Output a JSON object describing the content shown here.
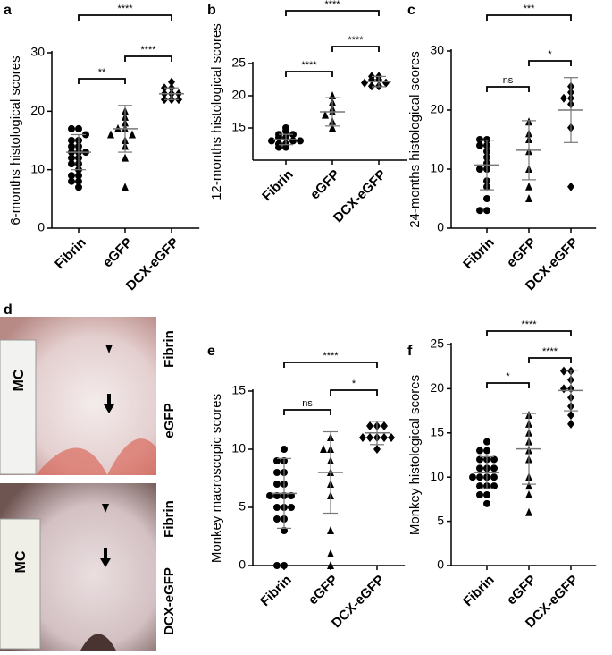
{
  "chart_data": [
    {
      "type": "dot",
      "panel": "a",
      "y_label": "6-months histological scores",
      "categories": [
        "Fibrin",
        "eGFP",
        "DCX-eGFP"
      ],
      "markers": [
        "circle",
        "triangle",
        "diamond"
      ],
      "color": "#000000",
      "ylim": [
        0,
        30
      ],
      "yticks": [
        0,
        10,
        20,
        30
      ],
      "groups": [
        {
          "values": [
            17,
            17,
            16,
            15,
            15,
            14,
            14,
            13,
            13,
            13,
            12,
            12,
            11,
            11,
            10,
            9,
            9,
            8,
            8,
            7
          ],
          "mean": 13,
          "sd": 3
        },
        {
          "values": [
            20,
            19,
            18,
            17,
            17,
            16,
            16,
            15,
            14,
            12,
            7
          ],
          "mean": 17,
          "sd": 4
        },
        {
          "values": [
            25,
            24,
            24,
            23,
            23,
            23,
            22,
            22,
            22
          ],
          "mean": 23,
          "sd": 1
        }
      ],
      "comparisons": [
        {
          "from": 0,
          "to": 1,
          "label": "**"
        },
        {
          "from": 1,
          "to": 2,
          "label": "****"
        },
        {
          "from": 0,
          "to": 2,
          "label": "****"
        }
      ]
    },
    {
      "type": "dot",
      "panel": "b",
      "y_label": "12-months histological scores",
      "categories": [
        "Fibrin",
        "eGFP",
        "DCX-eGFP"
      ],
      "markers": [
        "circle",
        "triangle",
        "diamond"
      ],
      "color": "#000000",
      "ylim": [
        10,
        25
      ],
      "yticks": [
        15,
        20,
        25
      ],
      "groups": [
        {
          "values": [
            15,
            14.5,
            14,
            14,
            13.5,
            13.5,
            13,
            13,
            13,
            12.5,
            12.5,
            12,
            12
          ],
          "mean": 13.2,
          "sd": 0.8
        },
        {
          "values": [
            20,
            19,
            18,
            17.5,
            17,
            16,
            15
          ],
          "mean": 17.5,
          "sd": 2.2
        },
        {
          "values": [
            23,
            23,
            22.5,
            22.5,
            22,
            22,
            21.5,
            21.5
          ],
          "mean": 22.2,
          "sd": 0.8
        }
      ],
      "comparisons": [
        {
          "from": 0,
          "to": 1,
          "label": "****"
        },
        {
          "from": 1,
          "to": 2,
          "label": "****"
        },
        {
          "from": 0,
          "to": 2,
          "label": "****"
        }
      ]
    },
    {
      "type": "dot",
      "panel": "c",
      "y_label": "24-months histological scores",
      "categories": [
        "Fibrin",
        "eGFP",
        "DCX-eGFP"
      ],
      "markers": [
        "circle",
        "triangle",
        "diamond"
      ],
      "color": "#000000",
      "ylim": [
        0,
        30
      ],
      "yticks": [
        0,
        10,
        20,
        30
      ],
      "groups": [
        {
          "values": [
            15,
            15,
            14,
            14,
            13,
            12,
            11,
            10,
            10,
            8,
            7,
            5,
            3,
            3
          ],
          "mean": 10.7,
          "sd": 4.2
        },
        {
          "values": [
            18,
            16,
            15,
            13,
            10,
            7,
            5
          ],
          "mean": 13.2,
          "sd": 5
        },
        {
          "values": [
            24,
            23,
            22,
            22,
            21,
            17,
            7
          ],
          "mean": 20,
          "sd": 5.5
        }
      ],
      "comparisons": [
        {
          "from": 0,
          "to": 1,
          "label": "ns"
        },
        {
          "from": 1,
          "to": 2,
          "label": "*"
        },
        {
          "from": 0,
          "to": 2,
          "label": "***"
        }
      ]
    },
    {
      "type": "dot",
      "panel": "e",
      "y_label": "Monkey macroscopic scores",
      "categories": [
        "Fibrin",
        "eGFP",
        "DCX-eGFP"
      ],
      "markers": [
        "circle",
        "triangle",
        "diamond"
      ],
      "color": "#000000",
      "ylim": [
        0,
        15
      ],
      "yticks": [
        0,
        5,
        10,
        15
      ],
      "groups": [
        {
          "values": [
            10,
            9,
            9,
            8,
            8,
            7,
            7,
            6,
            6,
            6,
            6,
            5,
            5,
            5,
            4,
            4,
            3,
            0,
            0
          ],
          "mean": 6.2,
          "sd": 3
        },
        {
          "values": [
            11,
            10,
            10,
            9,
            8,
            7,
            6,
            3,
            1,
            0
          ],
          "mean": 8,
          "sd": 3.5
        },
        {
          "values": [
            12,
            12,
            12,
            11,
            11,
            11,
            11,
            11,
            10
          ],
          "mean": 11.4,
          "sd": 1
        }
      ],
      "comparisons": [
        {
          "from": 0,
          "to": 1,
          "label": "ns"
        },
        {
          "from": 1,
          "to": 2,
          "label": "*"
        },
        {
          "from": 0,
          "to": 2,
          "label": "****"
        }
      ]
    },
    {
      "type": "dot",
      "panel": "f",
      "y_label": "Monkey histological scores",
      "categories": [
        "Fibrin",
        "eGFP",
        "DCX-eGFP"
      ],
      "markers": [
        "circle",
        "triangle",
        "diamond"
      ],
      "color": "#000000",
      "ylim": [
        0,
        25
      ],
      "yticks": [
        0,
        5,
        10,
        15,
        20,
        25
      ],
      "groups": [
        {
          "values": [
            14,
            13,
            13,
            12,
            12,
            12,
            11,
            11,
            11,
            10,
            10,
            10,
            10,
            9,
            9,
            9,
            8,
            8,
            7
          ],
          "mean": 10.5,
          "sd": 1.8
        },
        {
          "values": [
            17,
            16,
            15,
            14,
            13,
            12,
            10,
            9,
            8,
            6
          ],
          "mean": 13.2,
          "sd": 4
        },
        {
          "values": [
            22,
            22,
            21,
            20,
            20,
            19,
            18,
            17,
            16
          ],
          "mean": 19.8,
          "sd": 2.3
        }
      ],
      "comparisons": [
        {
          "from": 0,
          "to": 1,
          "label": "*"
        },
        {
          "from": 1,
          "to": 2,
          "label": "****"
        },
        {
          "from": 0,
          "to": 2,
          "label": "****"
        }
      ]
    }
  ],
  "photo_panel": {
    "panel": "d",
    "ruler_text": "MC",
    "photos": [
      {
        "labels": [
          "Fibrin",
          "eGFP"
        ]
      },
      {
        "labels": [
          "Fibrin",
          "DCX-eGFP"
        ]
      }
    ]
  }
}
